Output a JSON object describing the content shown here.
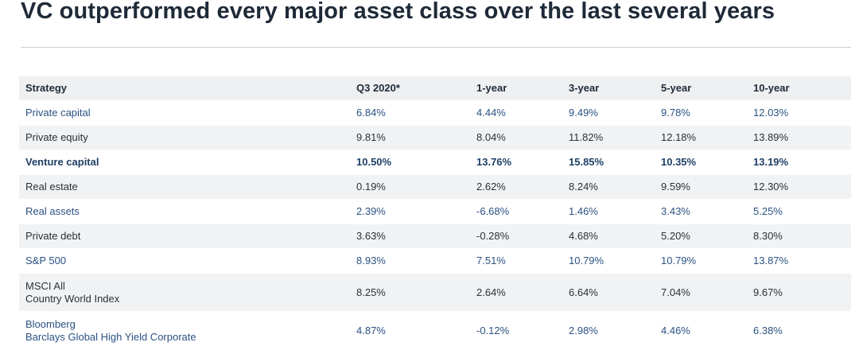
{
  "title": "VC outperformed every major asset class over the last several years",
  "table": {
    "headers": [
      "Strategy",
      "Q3 2020*",
      "1-year",
      "3-year",
      "5-year",
      "10-year"
    ],
    "rows": [
      {
        "strategy": [
          "Private capital"
        ],
        "values": [
          "6.84%",
          "4.44%",
          "9.49%",
          "9.78%",
          "12.03%"
        ]
      },
      {
        "strategy": [
          "Private equity"
        ],
        "values": [
          "9.81%",
          "8.04%",
          "11.82%",
          "12.18%",
          "13.89%"
        ]
      },
      {
        "strategy": [
          "Venture capital"
        ],
        "values": [
          "10.50%",
          "13.76%",
          "15.85%",
          "10.35%",
          "13.19%"
        ]
      },
      {
        "strategy": [
          "Real estate"
        ],
        "values": [
          "0.19%",
          "2.62%",
          "8.24%",
          "9.59%",
          "12.30%"
        ]
      },
      {
        "strategy": [
          "Real assets"
        ],
        "values": [
          "2.39%",
          "-6.68%",
          "1.46%",
          "3.43%",
          "5.25%"
        ]
      },
      {
        "strategy": [
          "Private debt"
        ],
        "values": [
          "3.63%",
          "-0.28%",
          "4.68%",
          "5.20%",
          "8.30%"
        ]
      },
      {
        "strategy": [
          "S&P 500"
        ],
        "values": [
          "8.93%",
          "7.51%",
          "10.79%",
          "10.79%",
          "13.87%"
        ]
      },
      {
        "strategy": [
          "MSCI All",
          "Country World Index"
        ],
        "values": [
          "8.25%",
          "2.64%",
          "6.64%",
          "7.04%",
          "9.67%"
        ]
      },
      {
        "strategy": [
          "Bloomberg",
          "Barclays Global High Yield Corporate"
        ],
        "values": [
          "4.87%",
          "-0.12%",
          "2.98%",
          "4.46%",
          "6.38%"
        ]
      }
    ]
  },
  "colors": {
    "title": "#1f2a38",
    "link_row_text": "#2c5282",
    "highlight_row_text": "#1f3f66",
    "stripe_background": "#f1f2f4",
    "header_background": "#eef0f2"
  }
}
